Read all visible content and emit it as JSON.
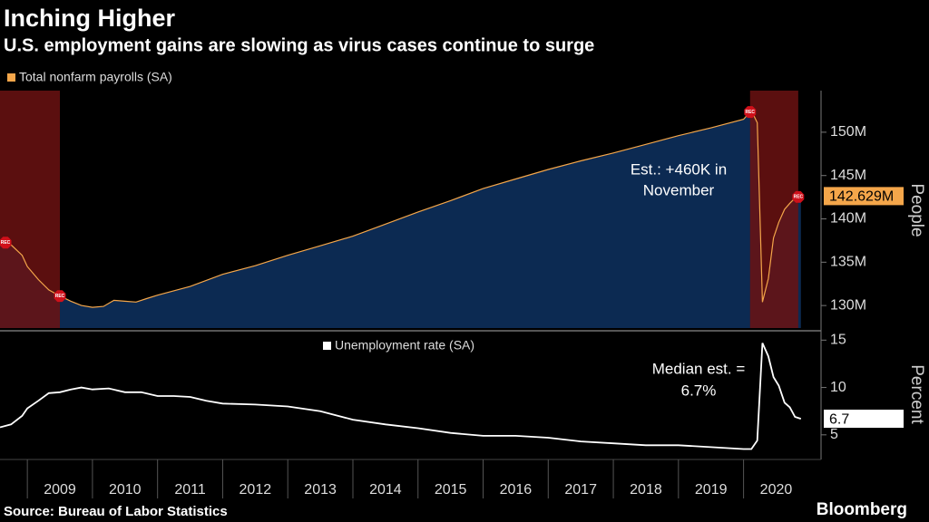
{
  "title": "Inching Higher",
  "subtitle": "U.S. employment gains are slowing as virus cases continue to surge",
  "source": "Source: Bureau of Labor Statistics",
  "brand": "Bloomberg",
  "chart_data": [
    {
      "type": "area",
      "series": [
        {
          "name": "Total nonfarm payrolls (SA)",
          "color": "#f4a64a",
          "values": [
            137.5,
            137.0,
            135.8,
            134.5,
            133.0,
            131.8,
            131.1,
            130.5,
            130.0,
            129.8,
            129.9,
            130.6,
            130.5,
            130.4,
            130.8,
            131.2,
            132.2,
            133.6,
            134.6,
            135.8,
            136.9,
            138.0,
            139.4,
            140.8,
            142.1,
            143.5,
            144.6,
            145.7,
            146.7,
            147.6,
            148.6,
            149.6,
            150.5,
            151.5,
            152.5,
            151.1,
            130.4,
            133.1,
            137.8,
            139.6,
            141.1,
            141.8,
            142.4,
            142.629
          ]
        }
      ],
      "x": [
        2008.58,
        2008.75,
        2008.92,
        2009.0,
        2009.17,
        2009.33,
        2009.5,
        2009.67,
        2009.83,
        2010.0,
        2010.17,
        2010.33,
        2010.5,
        2010.67,
        2010.83,
        2011.0,
        2011.5,
        2012.0,
        2012.5,
        2013.0,
        2013.5,
        2014.0,
        2014.5,
        2015.0,
        2015.5,
        2016.0,
        2016.5,
        2017.0,
        2017.5,
        2018.0,
        2018.5,
        2019.0,
        2019.5,
        2020.0,
        2020.12,
        2020.21,
        2020.29,
        2020.38,
        2020.46,
        2020.54,
        2020.63,
        2020.71,
        2020.79,
        2020.88
      ],
      "xlim": [
        2008.58,
        2021.19
      ],
      "ylim": [
        127.4,
        154.8
      ],
      "yticks": [
        {
          "value": 130,
          "label": "130M"
        },
        {
          "value": 135,
          "label": "135M"
        },
        {
          "value": 140,
          "label": "140M"
        },
        {
          "value": 145,
          "label": "145M"
        },
        {
          "value": 150,
          "label": "150M"
        }
      ],
      "ylabel": "People",
      "area_color": "#0c2a52",
      "annotation": [
        "Est.: +460K in",
        "November"
      ],
      "last_value_label": "142.629M",
      "recessions": [
        {
          "start": 2007.92,
          "end": 2009.5
        },
        {
          "start": 2020.1,
          "end": 2020.84
        }
      ],
      "recession_color": "#6b1212",
      "recession_label": "REC"
    },
    {
      "type": "line",
      "series": [
        {
          "name": "Unemployment rate (SA)",
          "color": "#ffffff",
          "values": [
            5.8,
            6.1,
            7.0,
            7.8,
            8.6,
            9.4,
            9.5,
            9.8,
            10.0,
            9.8,
            9.9,
            9.5,
            9.5,
            9.1,
            9.1,
            9.0,
            8.6,
            8.3,
            8.2,
            8.0,
            7.5,
            6.6,
            6.1,
            5.7,
            5.2,
            4.9,
            4.9,
            4.7,
            4.3,
            4.1,
            3.9,
            3.9,
            3.7,
            3.5,
            3.5,
            4.4,
            14.7,
            13.3,
            11.1,
            10.2,
            8.4,
            7.9,
            6.9,
            6.7
          ]
        }
      ],
      "x": [
        2008.58,
        2008.75,
        2008.92,
        2009.0,
        2009.17,
        2009.33,
        2009.5,
        2009.67,
        2009.83,
        2010.0,
        2010.25,
        2010.5,
        2010.75,
        2011.0,
        2011.25,
        2011.5,
        2011.75,
        2012.0,
        2012.5,
        2013.0,
        2013.5,
        2014.0,
        2014.5,
        2015.0,
        2015.5,
        2016.0,
        2016.5,
        2017.0,
        2017.5,
        2018.0,
        2018.5,
        2019.0,
        2019.5,
        2020.0,
        2020.12,
        2020.21,
        2020.29,
        2020.38,
        2020.46,
        2020.54,
        2020.63,
        2020.71,
        2020.79,
        2020.88
      ],
      "xlim": [
        2008.58,
        2021.19
      ],
      "xticks": [
        2009,
        2010,
        2011,
        2012,
        2013,
        2014,
        2015,
        2016,
        2017,
        2018,
        2019,
        2020
      ],
      "ylim": [
        2.4,
        15.7
      ],
      "yticks": [
        5,
        10,
        15
      ],
      "ylabel": "Percent",
      "annotation": [
        "Median est. =",
        "6.7%"
      ],
      "last_value_label": "6.7"
    }
  ]
}
